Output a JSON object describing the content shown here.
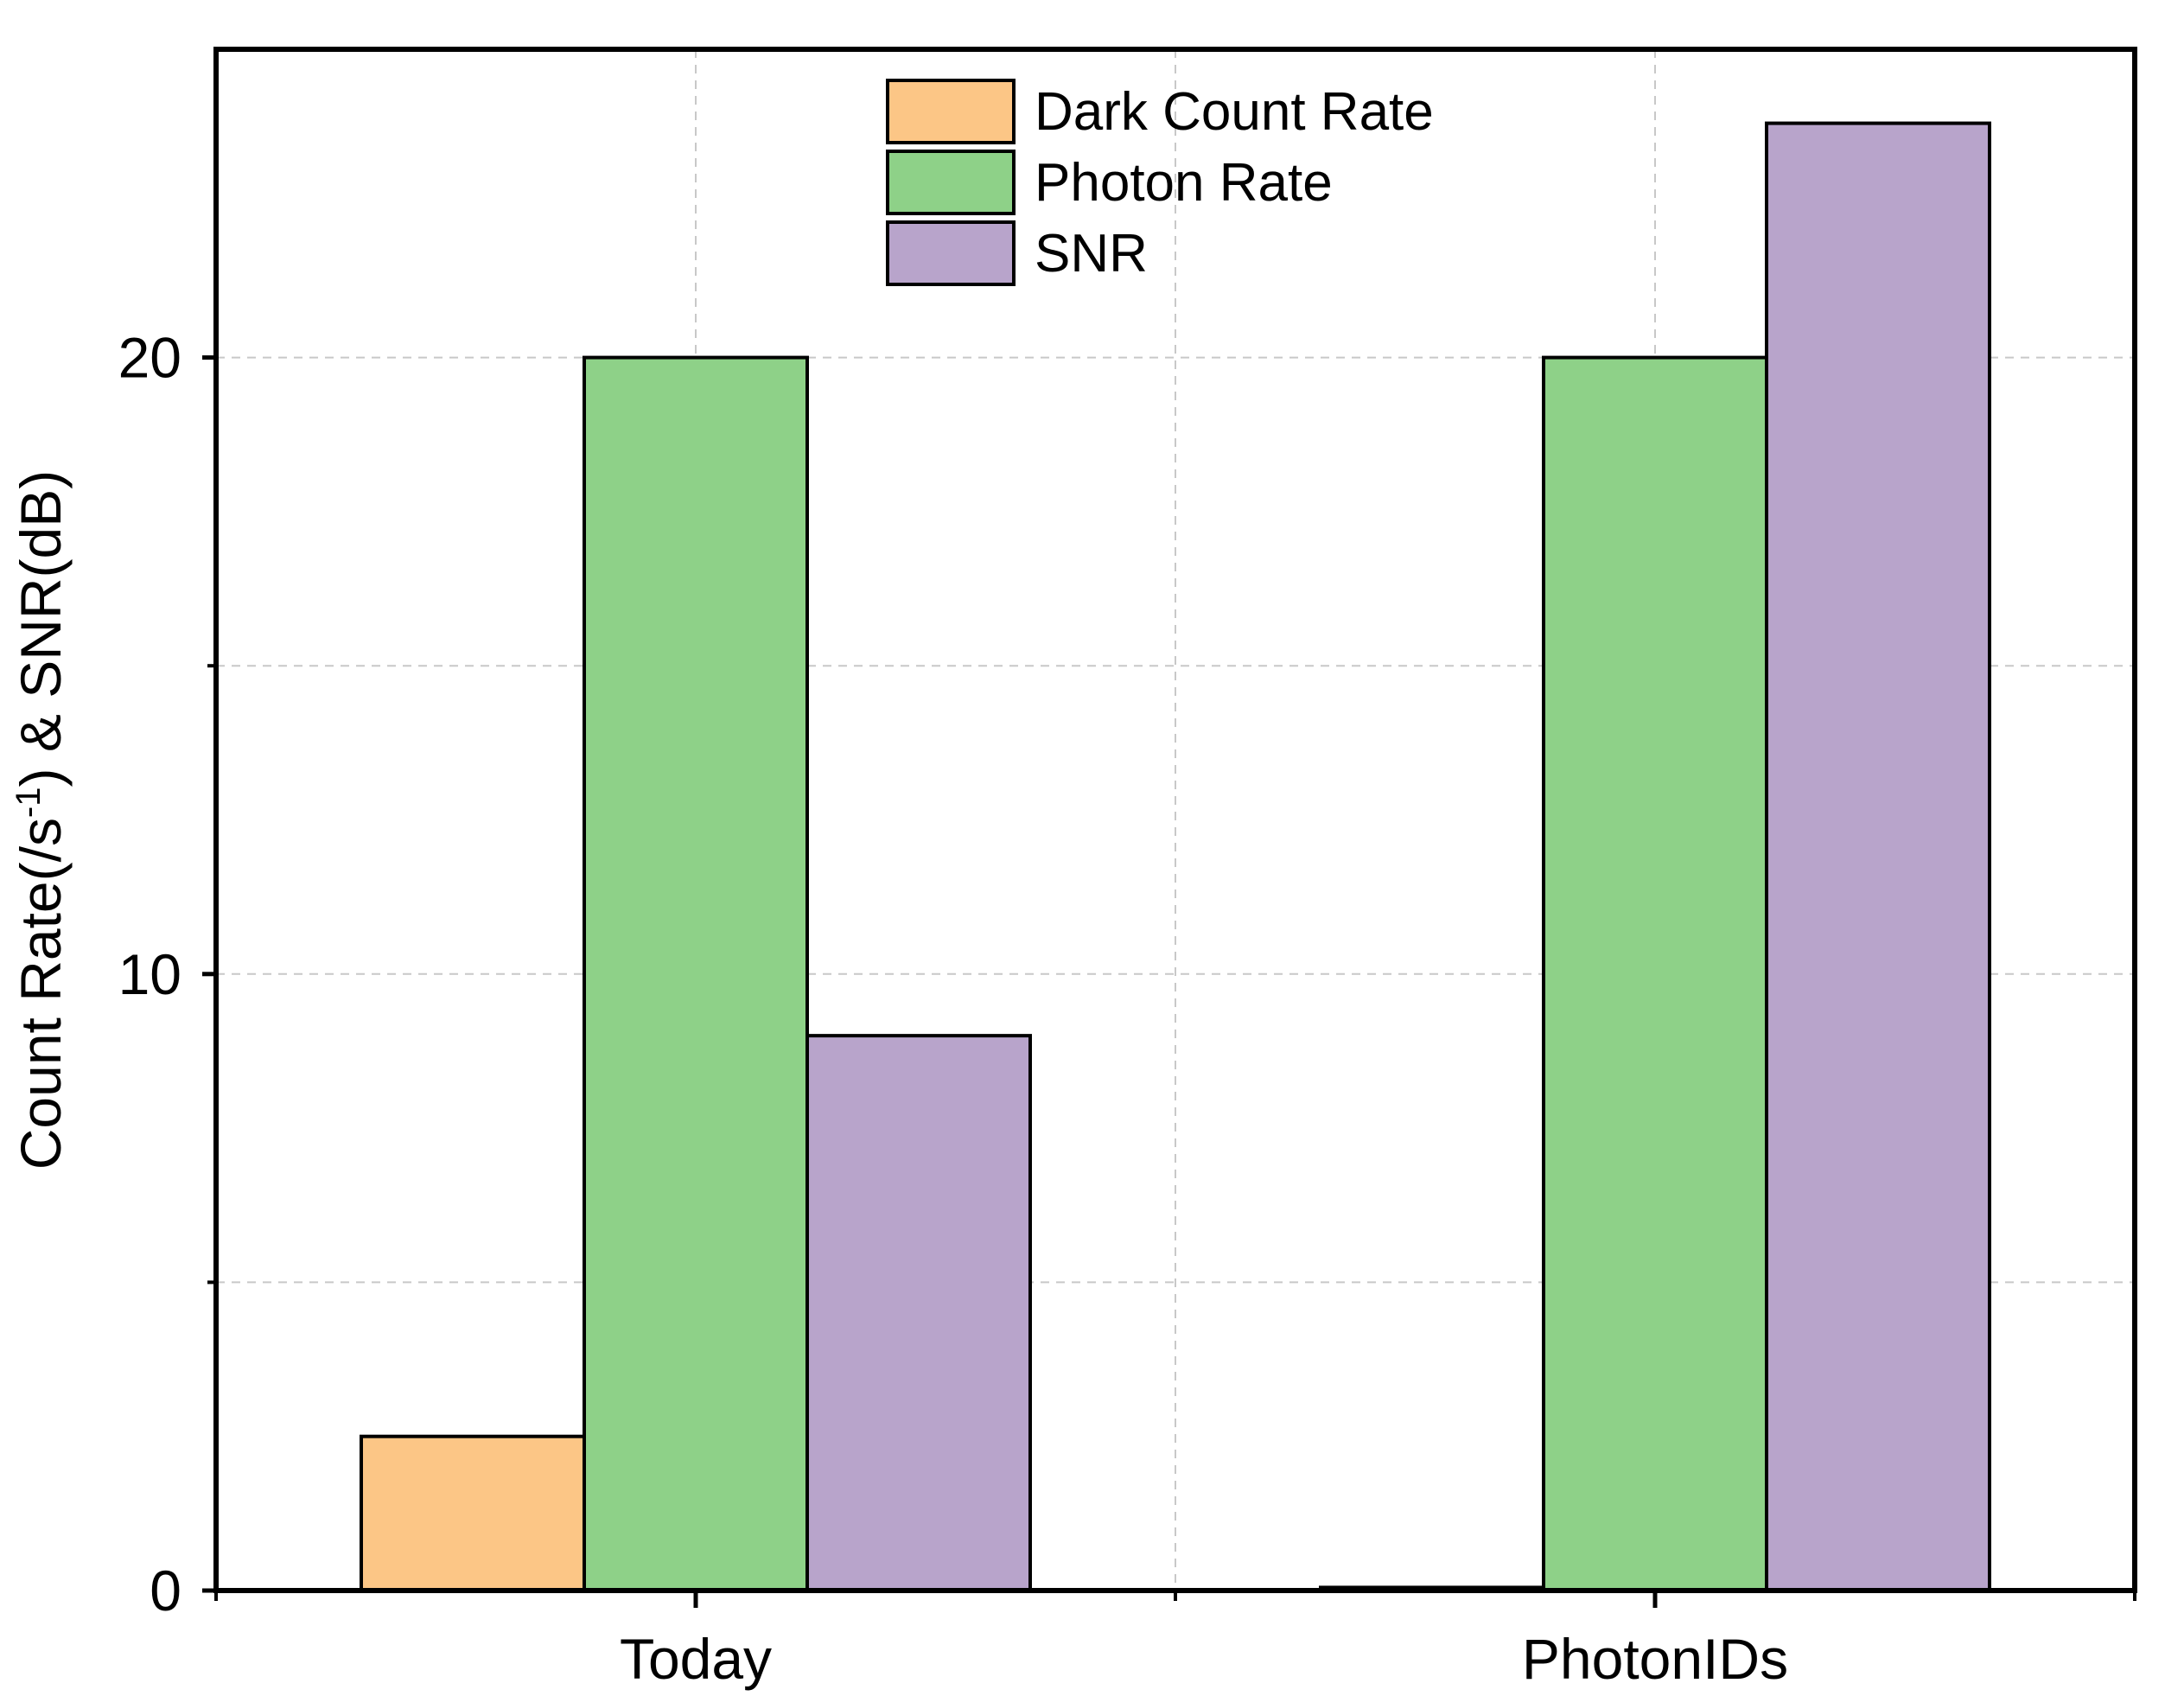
{
  "chart_data": {
    "type": "bar",
    "title": "",
    "xlabel": "",
    "ylabel_parts": [
      "Count Rate(/s",
      "-1",
      ") & SNR(dB)"
    ],
    "ylim": [
      0,
      25
    ],
    "yticks": [
      "0",
      "10",
      "20"
    ],
    "ytick_values": [
      0,
      10,
      20
    ],
    "yminor_values": [
      5,
      15
    ],
    "grid": true,
    "legend_position": "top-center",
    "categories": [
      "Today",
      "PhotonIDs"
    ],
    "series": [
      {
        "name": "Dark Count Rate",
        "color": "#fcc686",
        "values": [
          2.5,
          0.05
        ]
      },
      {
        "name": "Photon Rate",
        "color": "#8ed188",
        "values": [
          20,
          20
        ]
      },
      {
        "name": "SNR",
        "color": "#b8a4cb",
        "values": [
          9,
          23.8
        ]
      }
    ]
  }
}
